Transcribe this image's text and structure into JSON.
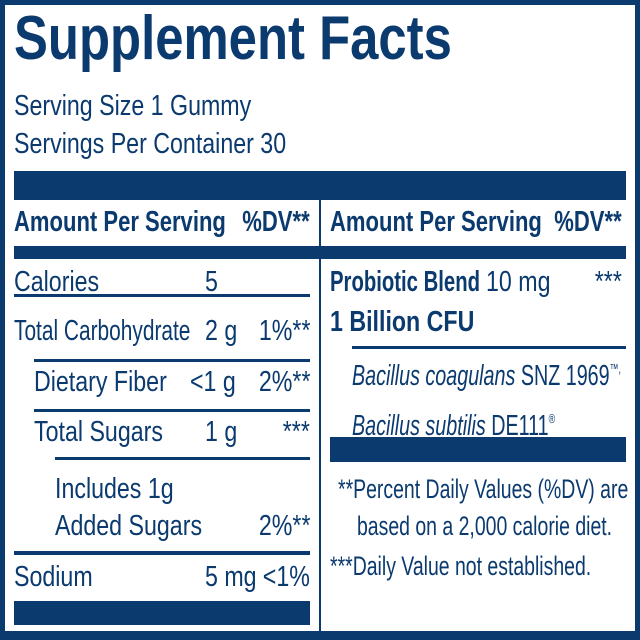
{
  "title": "Supplement Facts",
  "serving_size": "Serving Size 1 Gummy",
  "servings_per_container": "Servings Per Container 30",
  "colors": {
    "label": "#0b3a6f",
    "background": "#ffffff"
  },
  "left": {
    "header": {
      "amount": "Amount Per Serving",
      "dv": "%DV**"
    },
    "rows": [
      {
        "name": "Calories",
        "amount": "5",
        "dv": ""
      },
      {
        "name": "Total Carbohydrate",
        "amount": "2 g",
        "dv": "1%**"
      },
      {
        "name": "Dietary Fiber",
        "amount": "<1 g",
        "dv": "2%**"
      },
      {
        "name": "Total Sugars",
        "amount": "1 g",
        "dv": "***"
      },
      {
        "name": "Includes 1g",
        "name2": "Added Sugars",
        "amount": "",
        "dv": "2%**"
      },
      {
        "name": "Sodium",
        "amount": "5 mg",
        "dv": "<1%"
      }
    ]
  },
  "right": {
    "header": {
      "amount": "Amount Per Serving",
      "dv": "%DV**"
    },
    "blend": {
      "name": "Probiotic Blend",
      "amount": "10 mg",
      "dv": "***",
      "cfu": "1 Billion CFU"
    },
    "strains": [
      {
        "name": "Bacillus coagulans",
        "code": "SNZ 1969",
        "mark": "™,"
      },
      {
        "name": "Bacillus subtilis",
        "code": "DE111",
        "mark": "®"
      }
    ],
    "footnotes": [
      {
        "marker": "**",
        "text": "Percent Daily Values (%DV) are",
        "text2": "based on a 2,000 calorie diet."
      },
      {
        "marker": "***",
        "text": "Daily Value not established."
      }
    ]
  }
}
